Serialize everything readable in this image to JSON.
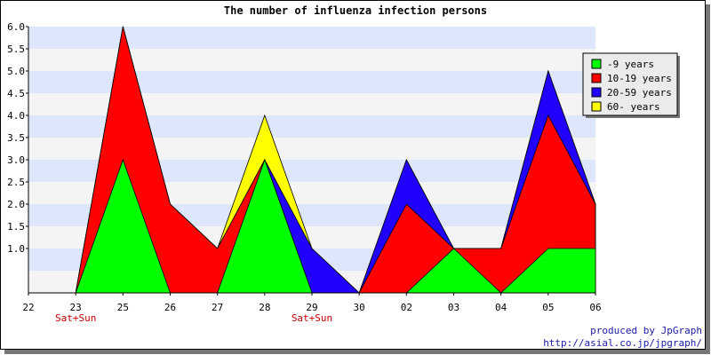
{
  "chart_data": {
    "type": "area",
    "stacked": true,
    "title": "The number of influenza infection persons",
    "x": [
      "22",
      "23",
      "25",
      "26",
      "27",
      "28",
      "29",
      "30",
      "02",
      "03",
      "04",
      "05",
      "06"
    ],
    "x_sublabels": [
      "",
      "Sat+Sun",
      "",
      "",
      "",
      "",
      "Sat+Sun",
      "",
      "",
      "",
      "",
      "",
      ""
    ],
    "y_ticks": [
      "1.0",
      "1.5",
      "2.0",
      "2.5",
      "3.0",
      "3.5",
      "4.0",
      "4.5",
      "5.0",
      "5.5",
      "6.0"
    ],
    "ylim": [
      0,
      6
    ],
    "grid": true,
    "legend_position": "top-right",
    "series": [
      {
        "name": "-9 years",
        "color": "#00ff00",
        "values": [
          0,
          0,
          3,
          0,
          0,
          3,
          0,
          0,
          0,
          1,
          0,
          1,
          1
        ]
      },
      {
        "name": "10-19 years",
        "color": "#ff0000",
        "values": [
          0,
          0,
          3,
          2,
          1,
          0,
          0,
          0,
          2,
          0,
          1,
          3,
          1
        ]
      },
      {
        "name": "20-59 years",
        "color": "#2200ff",
        "values": [
          0,
          0,
          0,
          0,
          0,
          0,
          1,
          0,
          1,
          0,
          0,
          1,
          0
        ]
      },
      {
        "name": "60- years",
        "color": "#ffff00",
        "values": [
          0,
          0,
          0,
          0,
          0,
          1,
          0,
          0,
          0,
          0,
          0,
          0,
          0
        ]
      }
    ],
    "colors": {
      "band_a": "#dde6fb",
      "band_b": "#f4f4f4",
      "sublabel": "#cc0000"
    }
  },
  "footer": {
    "line1": "produced by JpGraph",
    "line2": "http://asial.co.jp/jpgraph/"
  }
}
